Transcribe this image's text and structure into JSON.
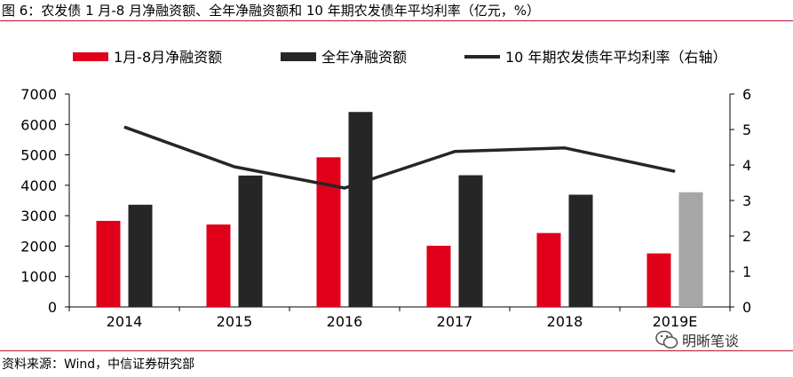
{
  "figure": {
    "title": "图 6：农发债 1 月-8 月净融资额、全年净融资额和 10 年期农发债年平均利率（亿元，%）",
    "source": "资料来源：Wind，中信证券研究部",
    "watermark": "明晰笔谈",
    "accent_color": "#b3122b"
  },
  "chart_data": {
    "type": "bar",
    "categories": [
      "2014",
      "2015",
      "2016",
      "2017",
      "2018",
      "2019E"
    ],
    "series": [
      {
        "name": "1月-8月净融资额",
        "type": "bar",
        "axis": "left",
        "color": "#e1001a",
        "values": [
          2830,
          2710,
          4920,
          2010,
          2430,
          1760
        ]
      },
      {
        "name": "全年净融资额",
        "type": "bar",
        "axis": "left",
        "color": "#262626",
        "values": [
          3360,
          4320,
          6410,
          4330,
          3690,
          null
        ]
      },
      {
        "name": "全年净融资额",
        "type": "bar",
        "axis": "left",
        "color": "#a6a6a6",
        "legend": false,
        "values": [
          null,
          null,
          null,
          null,
          null,
          3770
        ]
      },
      {
        "name": "10 年期农发债年平均利率（右轴）",
        "type": "line",
        "axis": "right",
        "color": "#262626",
        "values": [
          5.07,
          3.95,
          3.35,
          4.38,
          4.48,
          3.82
        ]
      }
    ],
    "y_left": {
      "min": 0,
      "max": 7000,
      "ticks": [
        "0",
        "1000",
        "2000",
        "3000",
        "4000",
        "5000",
        "6000",
        "7000"
      ]
    },
    "y_right": {
      "min": 0,
      "max": 6,
      "ticks": [
        "0",
        "1",
        "2",
        "3",
        "4",
        "5",
        "6"
      ]
    },
    "legend_position": "top",
    "grid": false
  }
}
